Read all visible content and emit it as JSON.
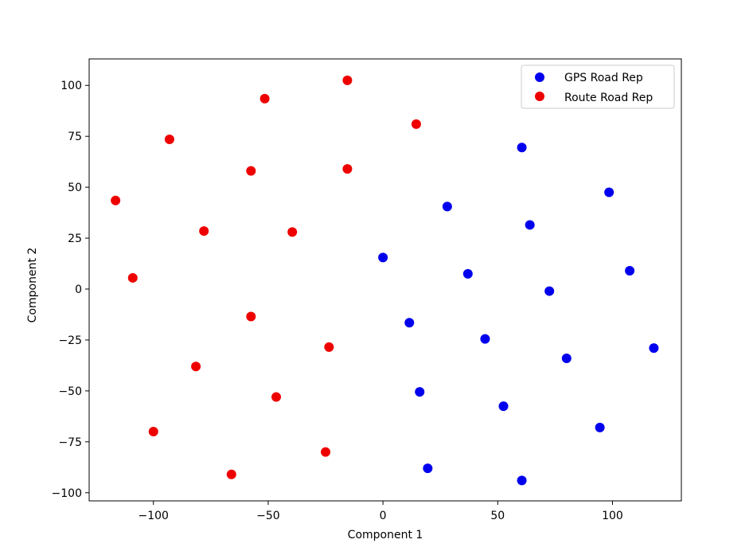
{
  "chart_data": {
    "type": "scatter",
    "title": "",
    "xlabel": "Component 1",
    "ylabel": "Component 2",
    "xlim": [
      -128,
      130
    ],
    "ylim": [
      -104,
      113
    ],
    "xticks": [
      -100,
      -50,
      0,
      50,
      100
    ],
    "yticks": [
      -100,
      -75,
      -50,
      -25,
      0,
      25,
      50,
      75,
      100
    ],
    "xtick_labels": [
      "−100",
      "−50",
      "0",
      "50",
      "100"
    ],
    "ytick_labels": [
      "−100",
      "−75",
      "−50",
      "−25",
      "0",
      "25",
      "50",
      "75",
      "100"
    ],
    "grid": false,
    "legend_position": "top-right",
    "series": [
      {
        "name": "GPS Road Rep",
        "color": "#0000ee",
        "points": [
          [
            60.5,
            69.5
          ],
          [
            98.5,
            47.5
          ],
          [
            28,
            40.5
          ],
          [
            64,
            31.5
          ],
          [
            0,
            15.5
          ],
          [
            37,
            7.5
          ],
          [
            107.5,
            9
          ],
          [
            72.5,
            -1
          ],
          [
            11.5,
            -16.5
          ],
          [
            44.5,
            -24.5
          ],
          [
            80,
            -34
          ],
          [
            118,
            -29
          ],
          [
            16,
            -50.5
          ],
          [
            52.5,
            -57.5
          ],
          [
            94.5,
            -68
          ],
          [
            19.5,
            -88
          ],
          [
            60.5,
            -94
          ]
        ]
      },
      {
        "name": "Route Road Rep",
        "color": "#ee0000",
        "points": [
          [
            -15.5,
            102.5
          ],
          [
            -51.5,
            93.5
          ],
          [
            14.5,
            81
          ],
          [
            -93,
            73.5
          ],
          [
            -57.5,
            58
          ],
          [
            -15.5,
            59
          ],
          [
            -116.5,
            43.5
          ],
          [
            -78,
            28.5
          ],
          [
            -39.5,
            28
          ],
          [
            -109,
            5.5
          ],
          [
            -57.5,
            -13.5
          ],
          [
            -23.5,
            -28.5
          ],
          [
            -81.5,
            -38
          ],
          [
            -46.5,
            -53
          ],
          [
            -100,
            -70
          ],
          [
            -25,
            -80
          ],
          [
            -66,
            -91
          ]
        ]
      }
    ]
  }
}
